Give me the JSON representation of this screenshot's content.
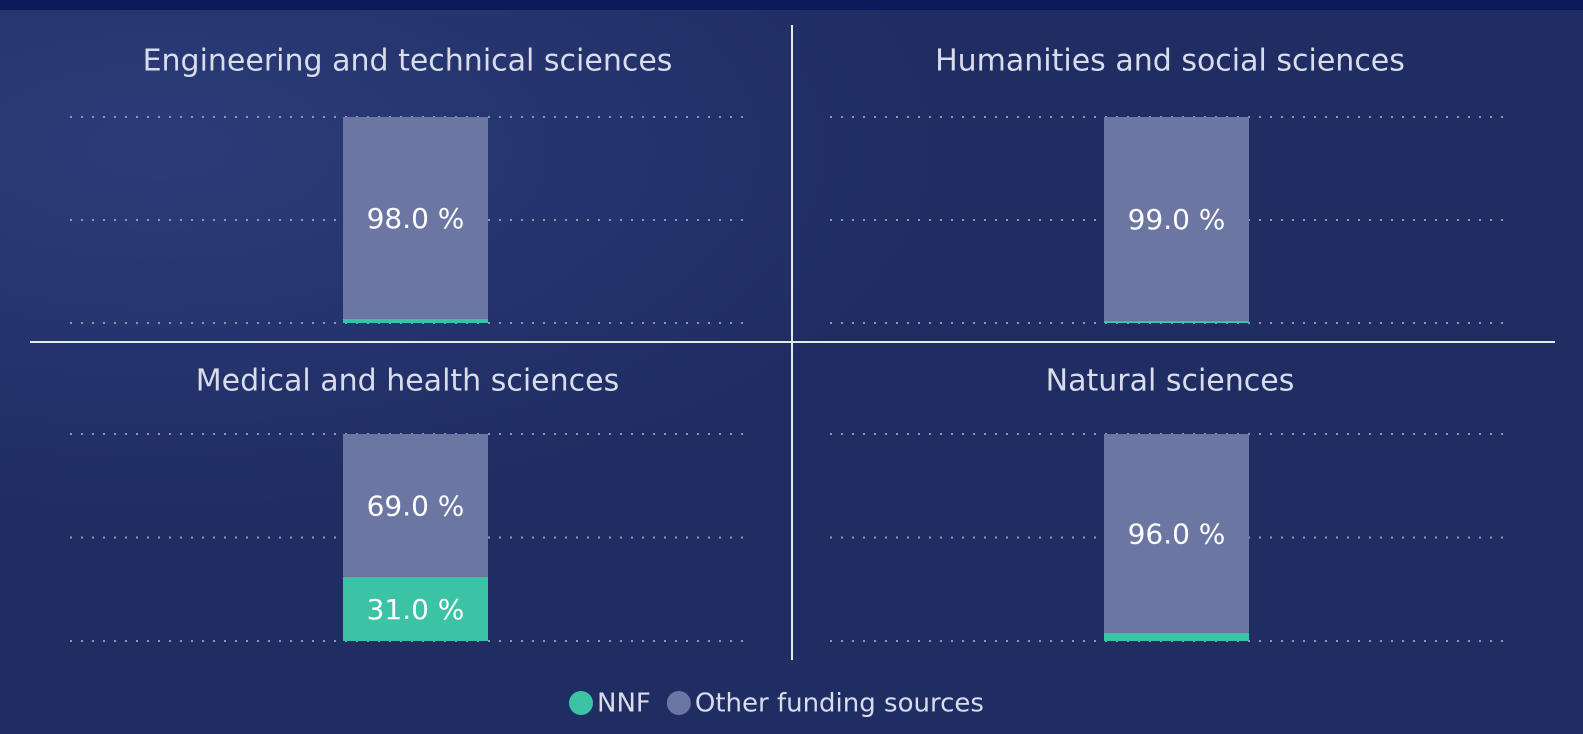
{
  "chart_data": {
    "type": "bar",
    "stacked": true,
    "panel_titles": [
      "Engineering and technical sciences",
      "Humanities and social sciences",
      "Medical and health sciences",
      "Natural sciences"
    ],
    "series": [
      {
        "name": "NNF",
        "color": "#3cc3a5",
        "values": [
          2,
          1,
          31,
          4
        ],
        "value_labels": [
          null,
          null,
          "31.0 %",
          null
        ]
      },
      {
        "name": "Other funding sources",
        "color": "#6b76a3",
        "values": [
          98,
          99,
          69,
          96
        ],
        "value_labels": [
          "98.0 %",
          "99.0 %",
          "69.0 %",
          "96.0 %"
        ]
      }
    ],
    "ylim": [
      0,
      100
    ],
    "yticks": [
      0,
      50,
      100
    ],
    "grid": true
  }
}
